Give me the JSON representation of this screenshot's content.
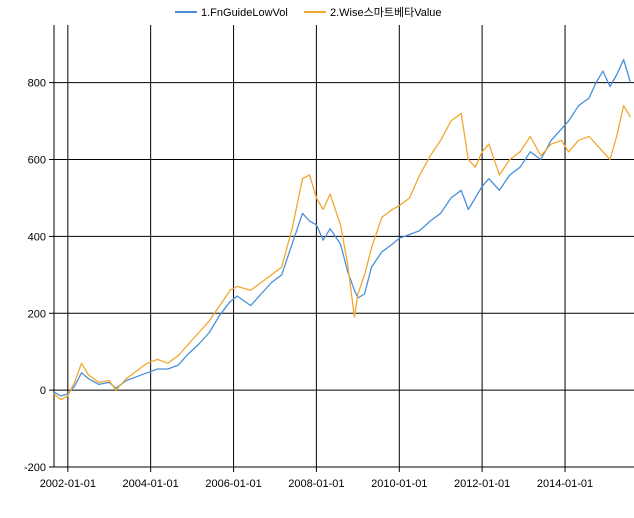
{
  "chart_data": {
    "type": "line",
    "title": "",
    "xlabel": "",
    "ylabel": "",
    "legend_position": "top-center",
    "grid": true,
    "xlim": [
      "2001-09-01",
      "2015-09-01"
    ],
    "ylim": [
      -200,
      950
    ],
    "x_ticks": [
      "2002-01-01",
      "2004-01-01",
      "2006-01-01",
      "2008-01-01",
      "2010-01-01",
      "2012-01-01",
      "2014-01-01"
    ],
    "y_ticks": [
      -200,
      0,
      200,
      400,
      600,
      800
    ],
    "series": [
      {
        "name": "1.FnGuideLowVol",
        "color": "#4a90d9",
        "points": [
          [
            "2001-09-01",
            -5
          ],
          [
            "2001-11-01",
            -15
          ],
          [
            "2002-01-01",
            -10
          ],
          [
            "2002-03-01",
            10
          ],
          [
            "2002-05-01",
            45
          ],
          [
            "2002-07-01",
            30
          ],
          [
            "2002-10-01",
            15
          ],
          [
            "2003-01-01",
            20
          ],
          [
            "2003-03-01",
            5
          ],
          [
            "2003-06-01",
            25
          ],
          [
            "2003-09-01",
            35
          ],
          [
            "2003-12-01",
            45
          ],
          [
            "2004-03-01",
            55
          ],
          [
            "2004-06-01",
            55
          ],
          [
            "2004-09-01",
            65
          ],
          [
            "2004-12-01",
            95
          ],
          [
            "2005-03-01",
            120
          ],
          [
            "2005-06-01",
            150
          ],
          [
            "2005-09-01",
            195
          ],
          [
            "2005-12-01",
            230
          ],
          [
            "2006-02-01",
            245
          ],
          [
            "2006-06-01",
            220
          ],
          [
            "2006-09-01",
            250
          ],
          [
            "2006-12-01",
            280
          ],
          [
            "2007-03-01",
            300
          ],
          [
            "2007-06-01",
            380
          ],
          [
            "2007-09-01",
            460
          ],
          [
            "2007-11-01",
            440
          ],
          [
            "2008-01-01",
            430
          ],
          [
            "2008-03-01",
            390
          ],
          [
            "2008-05-01",
            420
          ],
          [
            "2008-08-01",
            380
          ],
          [
            "2008-10-01",
            310
          ],
          [
            "2008-12-01",
            260
          ],
          [
            "2009-01-01",
            240
          ],
          [
            "2009-03-01",
            250
          ],
          [
            "2009-05-01",
            320
          ],
          [
            "2009-08-01",
            360
          ],
          [
            "2009-11-01",
            380
          ],
          [
            "2010-01-01",
            395
          ],
          [
            "2010-04-01",
            405
          ],
          [
            "2010-07-01",
            415
          ],
          [
            "2010-10-01",
            440
          ],
          [
            "2011-01-01",
            460
          ],
          [
            "2011-04-01",
            500
          ],
          [
            "2011-07-01",
            520
          ],
          [
            "2011-09-01",
            470
          ],
          [
            "2011-11-01",
            500
          ],
          [
            "2012-01-01",
            530
          ],
          [
            "2012-03-01",
            550
          ],
          [
            "2012-06-01",
            520
          ],
          [
            "2012-09-01",
            560
          ],
          [
            "2012-12-01",
            580
          ],
          [
            "2013-03-01",
            620
          ],
          [
            "2013-06-01",
            600
          ],
          [
            "2013-09-01",
            650
          ],
          [
            "2013-12-01",
            680
          ],
          [
            "2014-02-01",
            700
          ],
          [
            "2014-05-01",
            740
          ],
          [
            "2014-08-01",
            760
          ],
          [
            "2014-10-01",
            800
          ],
          [
            "2014-12-01",
            830
          ],
          [
            "2015-02-01",
            790
          ],
          [
            "2015-04-01",
            820
          ],
          [
            "2015-06-01",
            860
          ],
          [
            "2015-08-01",
            800
          ]
        ]
      },
      {
        "name": "2.Wise스마트베타Value",
        "color": "#f0a830",
        "points": [
          [
            "2001-09-01",
            -10
          ],
          [
            "2001-11-01",
            -25
          ],
          [
            "2002-01-01",
            -15
          ],
          [
            "2002-03-01",
            20
          ],
          [
            "2002-05-01",
            70
          ],
          [
            "2002-07-01",
            40
          ],
          [
            "2002-10-01",
            20
          ],
          [
            "2003-01-01",
            25
          ],
          [
            "2003-03-01",
            0
          ],
          [
            "2003-06-01",
            30
          ],
          [
            "2003-09-01",
            50
          ],
          [
            "2003-12-01",
            70
          ],
          [
            "2004-03-01",
            80
          ],
          [
            "2004-06-01",
            70
          ],
          [
            "2004-09-01",
            90
          ],
          [
            "2004-12-01",
            120
          ],
          [
            "2005-03-01",
            150
          ],
          [
            "2005-06-01",
            180
          ],
          [
            "2005-09-01",
            220
          ],
          [
            "2005-12-01",
            260
          ],
          [
            "2006-02-01",
            270
          ],
          [
            "2006-06-01",
            260
          ],
          [
            "2006-09-01",
            280
          ],
          [
            "2006-12-01",
            300
          ],
          [
            "2007-03-01",
            320
          ],
          [
            "2007-06-01",
            420
          ],
          [
            "2007-09-01",
            550
          ],
          [
            "2007-11-01",
            560
          ],
          [
            "2008-01-01",
            500
          ],
          [
            "2008-03-01",
            470
          ],
          [
            "2008-05-01",
            510
          ],
          [
            "2008-08-01",
            430
          ],
          [
            "2008-10-01",
            330
          ],
          [
            "2008-12-01",
            190
          ],
          [
            "2009-01-01",
            250
          ],
          [
            "2009-03-01",
            300
          ],
          [
            "2009-05-01",
            370
          ],
          [
            "2009-08-01",
            450
          ],
          [
            "2009-11-01",
            470
          ],
          [
            "2010-01-01",
            480
          ],
          [
            "2010-04-01",
            500
          ],
          [
            "2010-07-01",
            560
          ],
          [
            "2010-10-01",
            610
          ],
          [
            "2011-01-01",
            650
          ],
          [
            "2011-04-01",
            700
          ],
          [
            "2011-07-01",
            720
          ],
          [
            "2011-09-01",
            600
          ],
          [
            "2011-11-01",
            580
          ],
          [
            "2012-01-01",
            620
          ],
          [
            "2012-03-01",
            640
          ],
          [
            "2012-06-01",
            560
          ],
          [
            "2012-09-01",
            600
          ],
          [
            "2012-12-01",
            620
          ],
          [
            "2013-03-01",
            660
          ],
          [
            "2013-06-01",
            610
          ],
          [
            "2013-09-01",
            640
          ],
          [
            "2013-12-01",
            650
          ],
          [
            "2014-02-01",
            620
          ],
          [
            "2014-05-01",
            650
          ],
          [
            "2014-08-01",
            660
          ],
          [
            "2014-10-01",
            640
          ],
          [
            "2014-12-01",
            620
          ],
          [
            "2015-02-01",
            600
          ],
          [
            "2015-04-01",
            660
          ],
          [
            "2015-06-01",
            740
          ],
          [
            "2015-08-01",
            710
          ]
        ]
      }
    ]
  }
}
